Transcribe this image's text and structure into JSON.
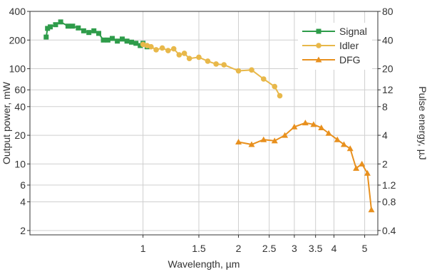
{
  "chart_data": {
    "type": "line",
    "xlabel": "Wavelength, µm",
    "ylabel": "Output power, mW",
    "y2label": "Pulse energy, µJ",
    "xscale": "log",
    "yscale": "log",
    "xlim": [
      0.44,
      5.5
    ],
    "ylim": [
      1.8,
      400
    ],
    "y2lim": [
      0.36,
      80
    ],
    "grid": true,
    "legend_position": "top-right",
    "x_ticks": [
      {
        "value": 1,
        "label": "1"
      },
      {
        "value": 1.5,
        "label": "1.5"
      },
      {
        "value": 2,
        "label": "2"
      },
      {
        "value": 2.5,
        "label": "2.5"
      },
      {
        "value": 3,
        "label": "3"
      },
      {
        "value": 3.5,
        "label": "3.5"
      },
      {
        "value": 4,
        "label": "4"
      },
      {
        "value": 5,
        "label": "5"
      }
    ],
    "y_ticks": [
      {
        "value": 2,
        "label": "2"
      },
      {
        "value": 4,
        "label": "4"
      },
      {
        "value": 6,
        "label": "6"
      },
      {
        "value": 10,
        "label": "10"
      },
      {
        "value": 20,
        "label": "20"
      },
      {
        "value": 40,
        "label": "40"
      },
      {
        "value": 60,
        "label": "60"
      },
      {
        "value": 100,
        "label": "100"
      },
      {
        "value": 200,
        "label": "200"
      },
      {
        "value": 400,
        "label": "400"
      }
    ],
    "y2_ticks": [
      {
        "value": 0.4,
        "label": "0.4"
      },
      {
        "value": 0.8,
        "label": "0.8"
      },
      {
        "value": 1.2,
        "label": "1.2"
      },
      {
        "value": 2,
        "label": "2"
      },
      {
        "value": 4,
        "label": "4"
      },
      {
        "value": 8,
        "label": "8"
      },
      {
        "value": 12,
        "label": "12"
      },
      {
        "value": 20,
        "label": "20"
      },
      {
        "value": 40,
        "label": "40"
      },
      {
        "value": 80,
        "label": "80"
      }
    ],
    "series": [
      {
        "name": "Signal",
        "color": "#2e9c4a",
        "marker": "square",
        "x": [
          0.495,
          0.5,
          0.51,
          0.53,
          0.55,
          0.58,
          0.6,
          0.625,
          0.65,
          0.675,
          0.7,
          0.725,
          0.75,
          0.775,
          0.8,
          0.83,
          0.86,
          0.89,
          0.92,
          0.95,
          0.98,
          1.0,
          1.03
        ],
        "y": [
          215,
          265,
          275,
          290,
          310,
          280,
          280,
          268,
          250,
          240,
          250,
          235,
          200,
          200,
          208,
          195,
          205,
          195,
          190,
          185,
          175,
          185,
          170
        ]
      },
      {
        "name": "Idler",
        "color": "#e8b84a",
        "marker": "circle",
        "x": [
          1.0,
          1.03,
          1.06,
          1.1,
          1.15,
          1.2,
          1.25,
          1.3,
          1.35,
          1.4,
          1.5,
          1.6,
          1.7,
          1.8,
          2.0,
          2.2,
          2.4,
          2.6,
          2.7
        ],
        "y": [
          180,
          175,
          170,
          158,
          165,
          155,
          162,
          140,
          145,
          128,
          132,
          120,
          112,
          110,
          95,
          97,
          78,
          65,
          52
        ]
      },
      {
        "name": "DFG",
        "color": "#e8901e",
        "marker": "triangle",
        "x": [
          2.0,
          2.2,
          2.4,
          2.6,
          2.8,
          3.0,
          3.25,
          3.45,
          3.65,
          3.85,
          4.1,
          4.3,
          4.5,
          4.7,
          4.9,
          5.1,
          5.25
        ],
        "y": [
          17,
          16,
          18,
          17.5,
          20,
          24.5,
          27,
          26,
          24,
          21,
          18,
          16,
          14.5,
          9,
          10,
          8,
          3.3
        ]
      }
    ]
  }
}
